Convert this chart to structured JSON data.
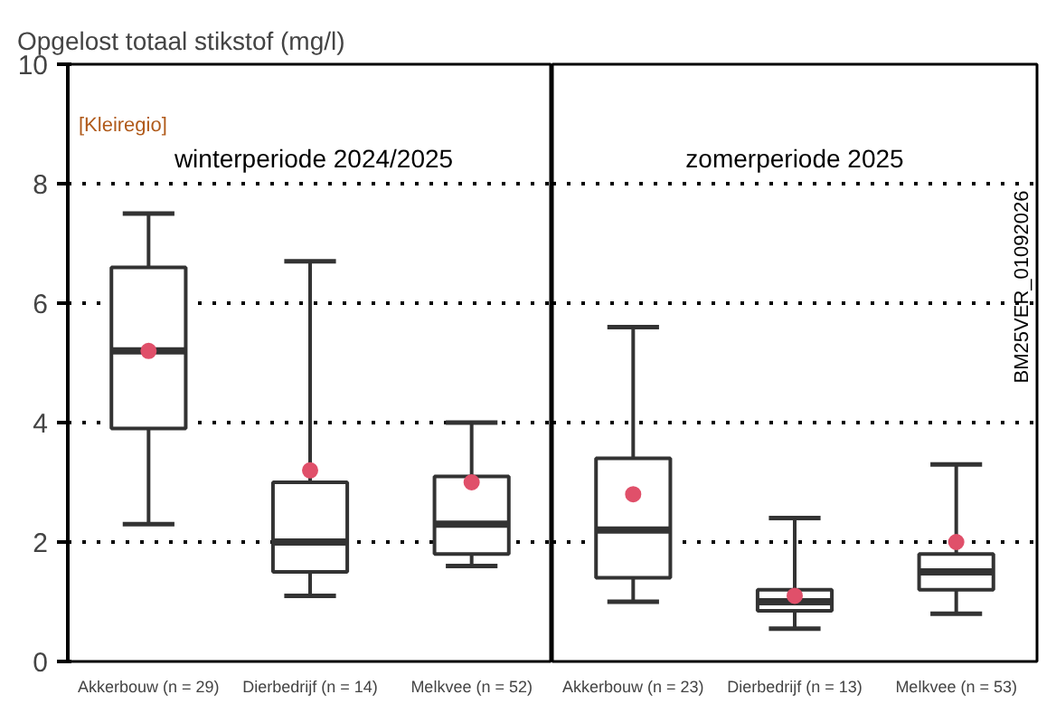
{
  "chart_data": [
    {
      "type": "box",
      "ylabel": "Opgelost totaal stikstof (mg/l)",
      "categories": [
        "Akkerbouw (n = 29)",
        "Dierbedrijf (n = 14)",
        "Melkvee (n = 52)"
      ],
      "ylim": [
        0,
        10
      ],
      "yticks": [
        0,
        2,
        4,
        6,
        8,
        10
      ],
      "grid": "y",
      "color": "#333333",
      "boxes": [
        {
          "low": 2.3,
          "q1": 3.9,
          "median": 5.2,
          "q3": 6.6,
          "high": 7.5,
          "mean": 5.2
        },
        {
          "low": 1.1,
          "q1": 1.5,
          "median": 2.0,
          "q3": 3.0,
          "high": 6.7,
          "mean": 3.2
        },
        {
          "low": 1.6,
          "q1": 1.8,
          "median": 2.3,
          "q3": 3.1,
          "high": 4.0,
          "mean": 3.0
        }
      ],
      "annotations": [
        "[Kleiregio]",
        "winterperiode 2024/2025"
      ]
    },
    {
      "type": "box",
      "categories": [
        "Akkerbouw (n = 23)",
        "Dierbedrijf (n = 13)",
        "Melkvee (n = 53)"
      ],
      "ylim": [
        0,
        10
      ],
      "yticks": [
        0,
        2,
        4,
        6,
        8,
        10
      ],
      "grid": "y",
      "tick_labels": "x",
      "color": "#333333",
      "boxes": [
        {
          "low": 1.0,
          "q1": 1.4,
          "median": 2.2,
          "q3": 3.4,
          "high": 5.6,
          "mean": 2.8
        },
        {
          "low": 0.55,
          "q1": 0.85,
          "median": 1.0,
          "q3": 1.2,
          "high": 2.4,
          "mean": 1.1
        },
        {
          "low": 0.8,
          "q1": 1.2,
          "median": 1.5,
          "q3": 1.8,
          "high": 3.3,
          "mean": 2.0
        }
      ],
      "annotations": [
        "zomerperiode 2025",
        "BM25VER_01092026"
      ]
    }
  ]
}
